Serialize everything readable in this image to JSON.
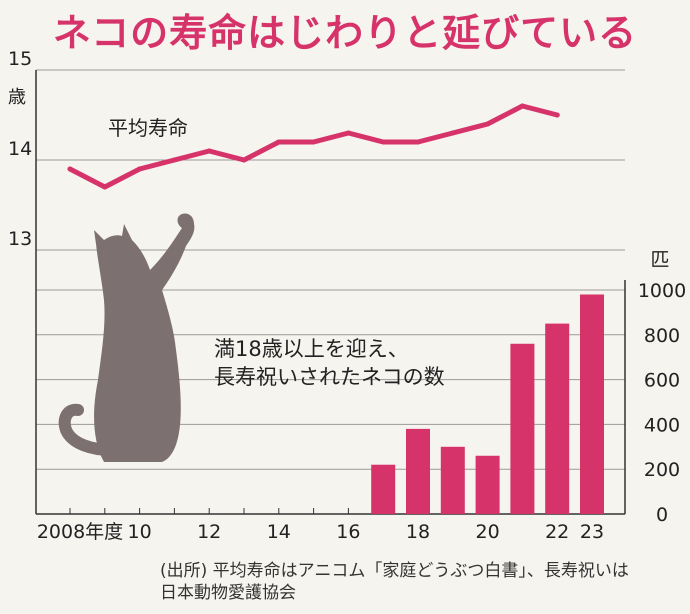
{
  "title": "ネコの寿命はじわりと延びている",
  "source_lines": [
    "(出所) 平均寿命はアニコム「家庭どうぶつ白書」、長寿祝いは",
    "日本動物愛護協会"
  ],
  "colors": {
    "title": "#d6336a",
    "series": "#d6336a",
    "cat": "#7c7070",
    "grid": "#9a9a9a",
    "background": "#f6f4ef"
  },
  "chart_data": [
    {
      "type": "line",
      "x": [
        2008,
        2009,
        2010,
        2011,
        2012,
        2013,
        2014,
        2015,
        2016,
        2017,
        2018,
        2019,
        2020,
        2021,
        2022
      ],
      "series": [
        {
          "name": "平均寿命",
          "values": [
            13.9,
            13.7,
            13.9,
            14.0,
            14.1,
            14.0,
            14.2,
            14.2,
            14.3,
            14.2,
            14.2,
            14.3,
            14.4,
            14.6,
            14.5
          ]
        }
      ],
      "ylabel": "歳",
      "ylim": [
        13,
        15
      ],
      "yticks": [
        "13",
        "14",
        "15"
      ],
      "grid": true
    },
    {
      "type": "bar",
      "categories": [
        "2017",
        "2018",
        "2019",
        "2020",
        "2021",
        "2022",
        "2023"
      ],
      "series": [
        {
          "name": "満18歳以上を迎え、長寿祝いされたネコの数",
          "values": [
            220,
            380,
            300,
            260,
            760,
            850,
            980
          ]
        }
      ],
      "ylabel": "匹",
      "ylim": [
        0,
        1000
      ],
      "yticks": [
        "0",
        "200",
        "400",
        "600",
        "800",
        "1000"
      ],
      "y_axis_side": "right",
      "grid": true
    }
  ],
  "x_axis": {
    "range": [
      2008,
      2023
    ],
    "ticks": [
      {
        "year": 2008,
        "label": "2008年度"
      },
      {
        "year": 2010,
        "label": "10"
      },
      {
        "year": 2012,
        "label": "12"
      },
      {
        "year": 2014,
        "label": "14"
      },
      {
        "year": 2016,
        "label": "16"
      },
      {
        "year": 2018,
        "label": "18"
      },
      {
        "year": 2020,
        "label": "20"
      },
      {
        "year": 2022,
        "label": "22"
      },
      {
        "year": 2023,
        "label": "23"
      }
    ]
  },
  "series_labels": {
    "line": "平均寿命",
    "bar_lines": [
      "満18歳以上を迎え、",
      "長寿祝いされたネコの数"
    ]
  },
  "cat_illustration": "cat-silhouette-reaching-up"
}
